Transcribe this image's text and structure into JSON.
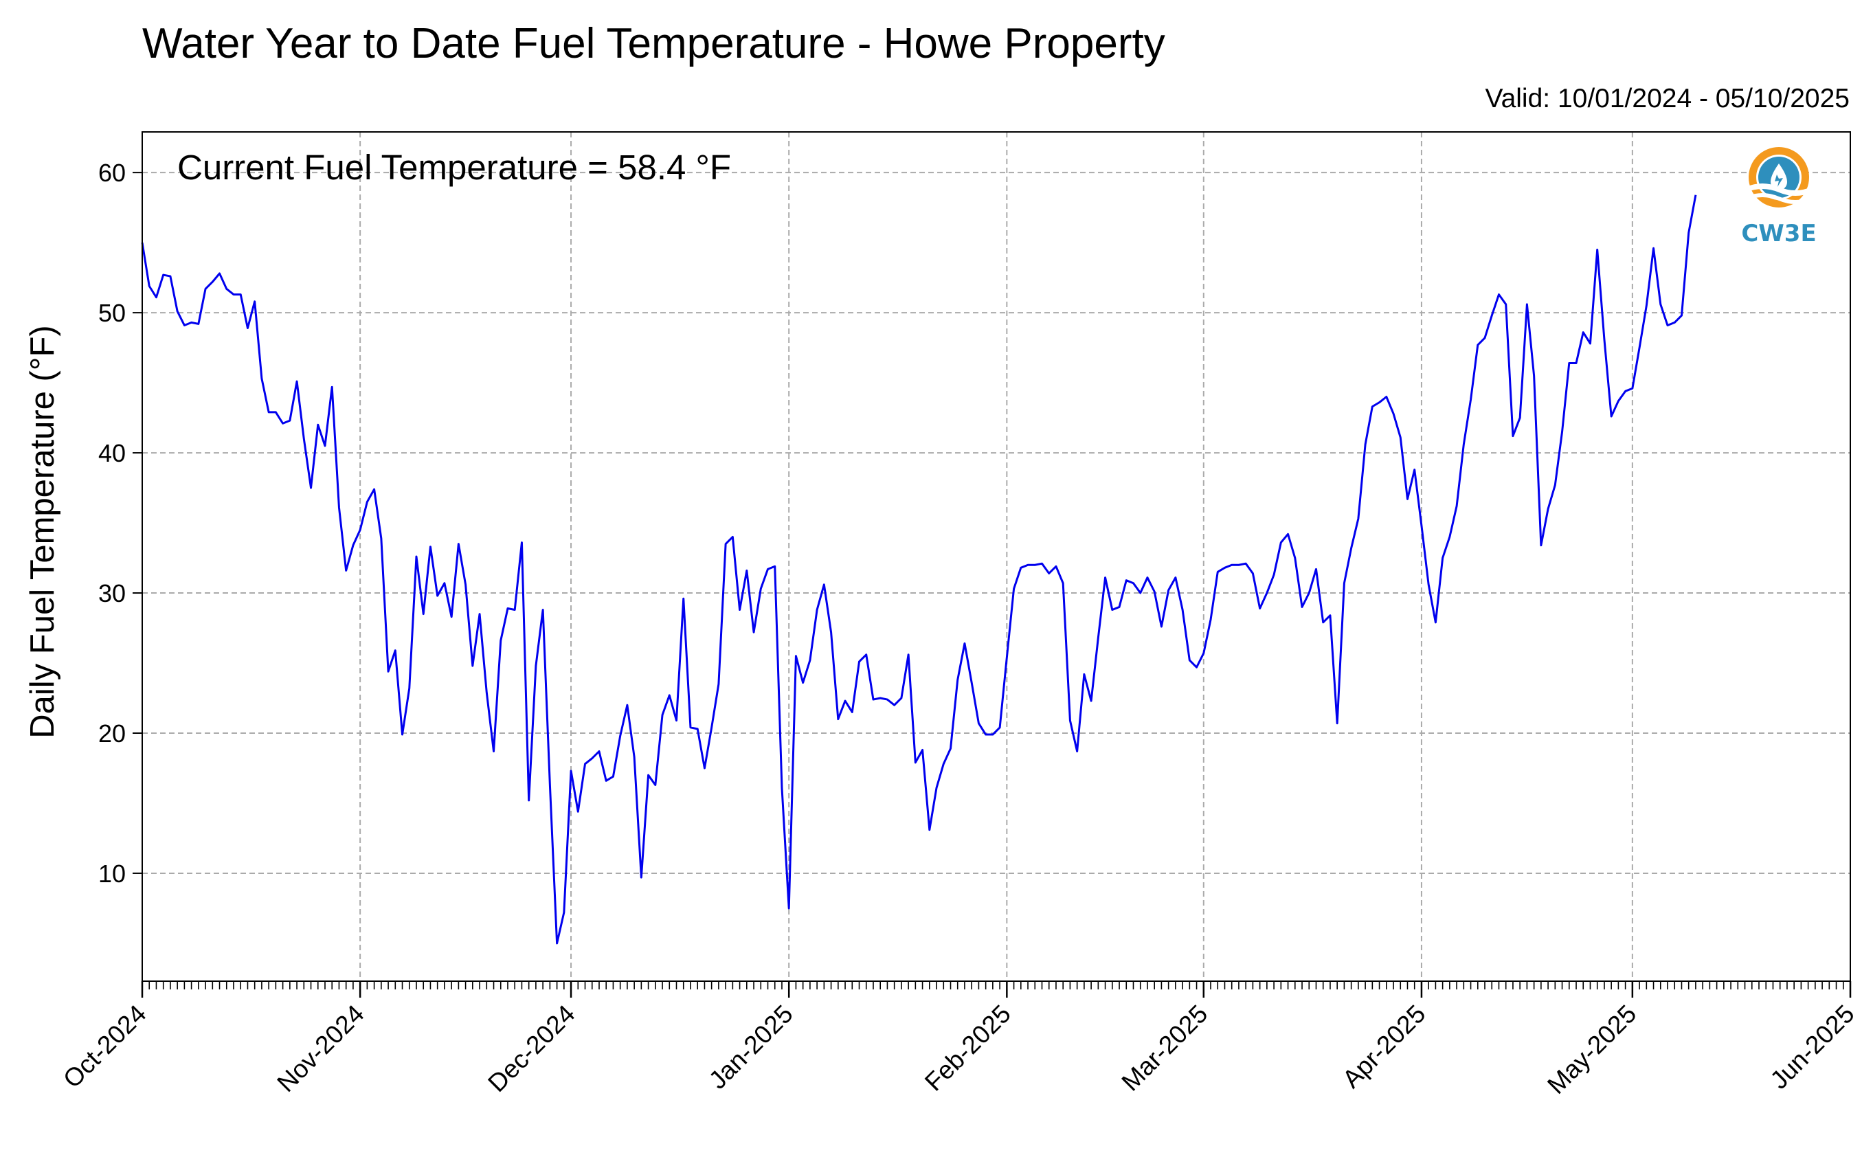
{
  "header": {
    "title": "Water Year to Date Fuel Temperature - Howe Property",
    "valid": "Valid: 10/01/2024 - 05/10/2025"
  },
  "logo": {
    "text": "CW3E",
    "icon": "cw3e-water-drop-logo"
  },
  "chart_data": {
    "type": "line",
    "title": "Water Year to Date Fuel Temperature - Howe Property",
    "ylabel": "Daily Fuel Temperature (°F)",
    "xlabel": "",
    "annotation": "Current Fuel Temperature = 58.4 °F",
    "xlim": [
      "2024-10-01",
      "2025-06-01"
    ],
    "ylim": [
      2.3,
      62.9
    ],
    "grid": true,
    "line_color": "#0000ee",
    "x_ticks": [
      "2024-10-01",
      "2024-11-01",
      "2024-12-01",
      "2025-01-01",
      "2025-02-01",
      "2025-03-01",
      "2025-04-01",
      "2025-05-01",
      "2025-06-01"
    ],
    "x_tick_labels": [
      "Oct-2024",
      "Nov-2024",
      "Dec-2024",
      "Jan-2025",
      "Feb-2025",
      "Mar-2025",
      "Apr-2025",
      "May-2025",
      "Jun-2025"
    ],
    "y_ticks": [
      10,
      20,
      30,
      40,
      50,
      60
    ],
    "series": [
      {
        "x_start": "2024-10-01",
        "x_end": "2025-05-10",
        "step": "1 day",
        "values": [
          55.0,
          51.9,
          51.1,
          52.7,
          52.6,
          50.1,
          49.1,
          49.3,
          49.2,
          51.7,
          52.2,
          52.8,
          51.7,
          51.3,
          51.3,
          48.9,
          50.8,
          45.3,
          42.9,
          42.9,
          42.1,
          42.3,
          45.1,
          41.0,
          37.5,
          42.0,
          40.5,
          44.7,
          36.1,
          31.6,
          33.4,
          34.5,
          36.5,
          37.4,
          33.9,
          24.4,
          25.9,
          19.9,
          23.2,
          32.6,
          28.5,
          33.3,
          29.8,
          30.7,
          28.3,
          33.5,
          30.6,
          24.8,
          28.5,
          22.9,
          18.7,
          26.6,
          28.9,
          28.8,
          33.6,
          15.2,
          24.8,
          28.8,
          16.3,
          5.0,
          7.2,
          17.3,
          14.4,
          17.8,
          18.2,
          18.7,
          16.6,
          16.9,
          19.8,
          22.0,
          18.3,
          9.7,
          17.0,
          16.3,
          21.3,
          22.7,
          20.9,
          29.6,
          20.4,
          20.3,
          17.5,
          20.4,
          23.5,
          33.5,
          34.0,
          28.8,
          31.6,
          27.2,
          30.3,
          31.7,
          31.9,
          16.1,
          7.5,
          25.5,
          23.6,
          25.2,
          28.8,
          30.6,
          27.2,
          21.0,
          22.3,
          21.5,
          25.1,
          25.6,
          22.4,
          22.5,
          22.4,
          22.0,
          22.5,
          25.6,
          17.9,
          18.8,
          13.1,
          16.1,
          17.8,
          18.9,
          23.8,
          26.4,
          23.6,
          20.7,
          19.9,
          19.9,
          20.4,
          25.4,
          30.3,
          31.8,
          32.0,
          32.0,
          32.1,
          31.4,
          31.9,
          30.7,
          20.9,
          18.7,
          24.2,
          22.3,
          26.8,
          31.1,
          28.8,
          29.0,
          30.9,
          30.7,
          30.0,
          31.1,
          30.1,
          27.6,
          30.2,
          31.1,
          28.8,
          25.2,
          24.7,
          25.7,
          28.1,
          31.5,
          31.8,
          32.0,
          32.0,
          32.1,
          31.4,
          28.9,
          30.0,
          31.3,
          33.6,
          34.2,
          32.5,
          29.0,
          30.0,
          31.7,
          27.9,
          28.4,
          20.7,
          30.7,
          33.2,
          35.3,
          40.6,
          43.3,
          43.6,
          44.0,
          42.8,
          41.1,
          36.7,
          38.8,
          34.8,
          30.6,
          27.9,
          32.5,
          34.0,
          36.2,
          40.6,
          43.8,
          47.7,
          48.2,
          49.8,
          51.3,
          50.6,
          41.2,
          42.5,
          50.6,
          45.5,
          33.4,
          36.0,
          37.7,
          41.5,
          46.4,
          46.4,
          48.6,
          47.8,
          54.5,
          48.1,
          42.6,
          43.7,
          44.4,
          44.6,
          47.5,
          50.5,
          54.6,
          50.6,
          49.1,
          49.3,
          49.8,
          55.7,
          58.4
        ]
      }
    ]
  }
}
